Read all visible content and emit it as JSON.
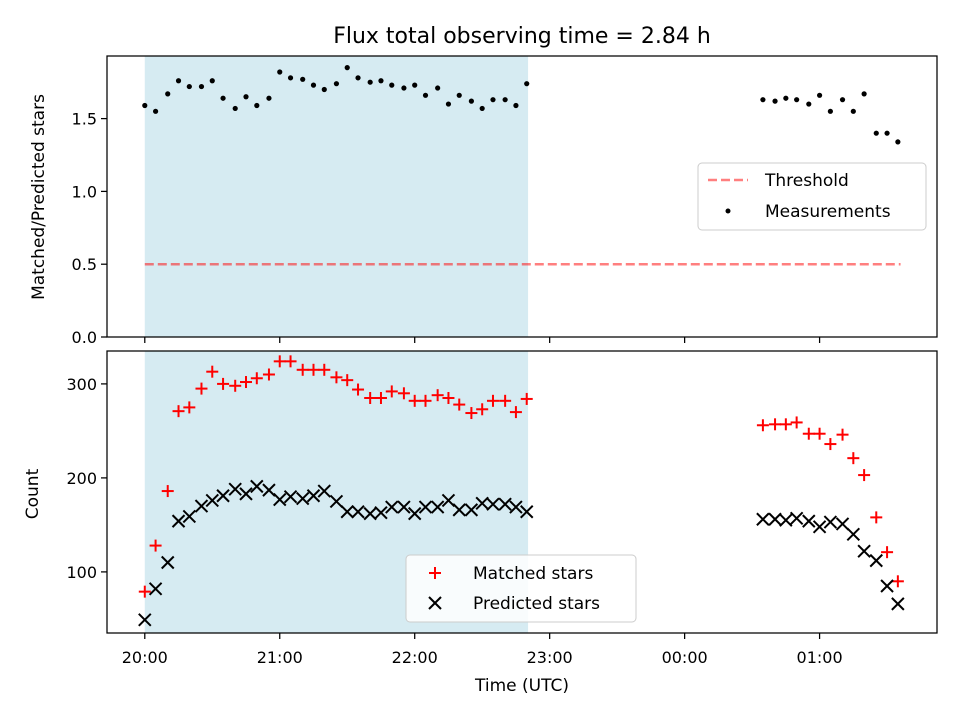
{
  "chart_data": [
    {
      "type": "scatter",
      "title": "Flux total observing time = 2.84 h",
      "xlabel": "",
      "ylabel": "Matched/Predicted stars",
      "ylim": [
        0,
        1.93
      ],
      "yticks": [
        "0.0",
        "0.5",
        "1.0",
        "1.5"
      ],
      "ytick_values": [
        0,
        0.5,
        1.0,
        1.5
      ],
      "shaded_region": {
        "from_h": 0.0,
        "to_h": 2.84,
        "color": "#add8e6"
      },
      "legend": {
        "placement": "right",
        "entries": [
          "Threshold",
          "Measurements"
        ]
      },
      "threshold": {
        "name": "Threshold",
        "value": 0.5,
        "x_from_h": 0.0,
        "x_to_h": 5.6,
        "color": "#ff0000"
      },
      "series": [
        {
          "name": "Measurements",
          "marker": "dot",
          "color": "#000000",
          "x_h": [
            0.0,
            0.08,
            0.17,
            0.25,
            0.33,
            0.42,
            0.5,
            0.58,
            0.67,
            0.75,
            0.83,
            0.92,
            1.0,
            1.08,
            1.17,
            1.25,
            1.33,
            1.42,
            1.5,
            1.58,
            1.67,
            1.75,
            1.83,
            1.92,
            2.0,
            2.08,
            2.17,
            2.25,
            2.33,
            2.42,
            2.5,
            2.58,
            2.67,
            2.75,
            2.83,
            4.58,
            4.67,
            4.75,
            4.83,
            4.92,
            5.0,
            5.08,
            5.17,
            5.25,
            5.33,
            5.42,
            5.5,
            5.58
          ],
          "y": [
            1.59,
            1.55,
            1.67,
            1.76,
            1.72,
            1.72,
            1.76,
            1.64,
            1.57,
            1.65,
            1.59,
            1.64,
            1.82,
            1.78,
            1.77,
            1.73,
            1.7,
            1.74,
            1.85,
            1.78,
            1.75,
            1.76,
            1.73,
            1.71,
            1.73,
            1.66,
            1.71,
            1.6,
            1.66,
            1.62,
            1.57,
            1.63,
            1.63,
            1.59,
            1.74,
            1.63,
            1.62,
            1.64,
            1.63,
            1.6,
            1.66,
            1.55,
            1.63,
            1.55,
            1.67,
            1.4,
            1.4,
            1.34
          ]
        }
      ]
    },
    {
      "type": "scatter",
      "title": "",
      "xlabel": "Time (UTC)",
      "ylabel": "Count",
      "ylim": [
        35,
        335
      ],
      "yticks": [
        "100",
        "200",
        "300"
      ],
      "ytick_values": [
        100,
        200,
        300
      ],
      "xticks": [
        "20:00",
        "21:00",
        "22:00",
        "23:00",
        "00:00",
        "01:00"
      ],
      "xtick_values_h": [
        0,
        1,
        2,
        3,
        4,
        5
      ],
      "xlim_h": [
        -0.28,
        5.87
      ],
      "shaded_region": {
        "from_h": 0.0,
        "to_h": 2.84,
        "color": "#add8e6"
      },
      "legend": {
        "placement": "bottom-center",
        "entries": [
          "Matched stars",
          "Predicted stars"
        ]
      },
      "series": [
        {
          "name": "Matched stars",
          "marker": "plus",
          "color": "#ff0000",
          "x_h": [
            0.0,
            0.08,
            0.17,
            0.25,
            0.33,
            0.42,
            0.5,
            0.58,
            0.67,
            0.75,
            0.83,
            0.92,
            1.0,
            1.08,
            1.17,
            1.25,
            1.33,
            1.42,
            1.5,
            1.58,
            1.67,
            1.75,
            1.83,
            1.92,
            2.0,
            2.08,
            2.17,
            2.25,
            2.33,
            2.42,
            2.5,
            2.58,
            2.67,
            2.75,
            2.83,
            4.58,
            4.67,
            4.75,
            4.83,
            4.92,
            5.0,
            5.08,
            5.17,
            5.25,
            5.33,
            5.42,
            5.5,
            5.58
          ],
          "y": [
            79,
            128,
            186,
            271,
            275,
            295,
            313,
            300,
            298,
            302,
            306,
            310,
            324,
            324,
            315,
            315,
            315,
            307,
            304,
            294,
            285,
            285,
            292,
            290,
            282,
            282,
            288,
            285,
            278,
            269,
            273,
            282,
            282,
            270,
            284,
            256,
            257,
            257,
            259,
            247,
            247,
            236,
            246,
            221,
            203,
            158,
            121,
            90
          ]
        },
        {
          "name": "Predicted stars",
          "marker": "x",
          "color": "#000000",
          "x_h": [
            0.0,
            0.08,
            0.17,
            0.25,
            0.33,
            0.42,
            0.5,
            0.58,
            0.67,
            0.75,
            0.83,
            0.92,
            1.0,
            1.08,
            1.17,
            1.25,
            1.33,
            1.42,
            1.5,
            1.58,
            1.67,
            1.75,
            1.83,
            1.92,
            2.0,
            2.08,
            2.17,
            2.25,
            2.33,
            2.42,
            2.5,
            2.58,
            2.67,
            2.75,
            2.83,
            4.58,
            4.67,
            4.75,
            4.83,
            4.92,
            5.0,
            5.08,
            5.17,
            5.25,
            5.33,
            5.42,
            5.5,
            5.58
          ],
          "y": [
            49,
            82,
            110,
            154,
            159,
            170,
            176,
            181,
            188,
            183,
            191,
            187,
            177,
            180,
            178,
            181,
            186,
            175,
            164,
            164,
            162,
            163,
            169,
            169,
            162,
            169,
            169,
            176,
            166,
            166,
            173,
            172,
            172,
            169,
            164,
            156,
            156,
            155,
            157,
            154,
            148,
            153,
            151,
            140,
            122,
            112,
            85,
            66
          ]
        }
      ]
    }
  ]
}
